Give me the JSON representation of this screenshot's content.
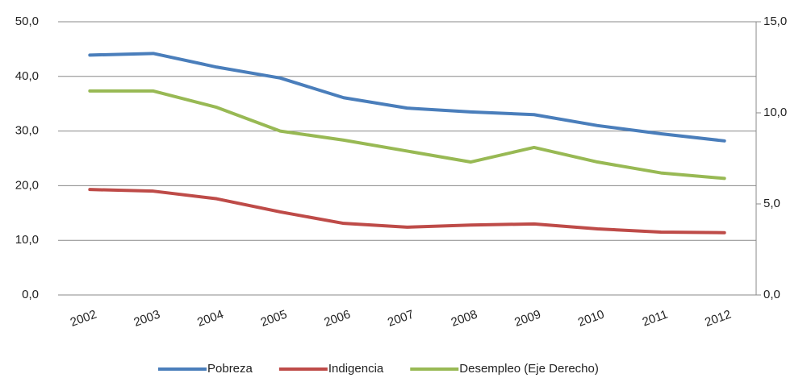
{
  "chart_data": {
    "type": "line",
    "categories": [
      "2002",
      "2003",
      "2004",
      "2005",
      "2006",
      "2007",
      "2008",
      "2009",
      "2010",
      "2011",
      "2012"
    ],
    "series": [
      {
        "name": "Pobreza",
        "color": "#4a7ebb",
        "values": [
          43.9,
          44.2,
          41.7,
          39.7,
          36.1,
          34.2,
          33.5,
          33.0,
          31.0,
          29.5,
          28.2
        ]
      },
      {
        "name": "Indigencia",
        "color": "#be4b48",
        "values": [
          19.3,
          19.0,
          17.6,
          15.2,
          13.1,
          12.4,
          12.8,
          13.0,
          12.1,
          11.5,
          11.4
        ]
      },
      {
        "name": "Desempleo (Eje Derecho)",
        "color": "#98b954",
        "axis": "y2",
        "values": [
          11.2,
          11.2,
          10.3,
          9.0,
          8.5,
          7.9,
          7.3,
          8.1,
          7.3,
          6.7,
          6.4
        ]
      }
    ],
    "ylim": [
      0,
      50
    ],
    "yticks": [
      {
        "value": 0,
        "label": "0,0"
      },
      {
        "value": 10,
        "label": "10,0"
      },
      {
        "value": 20,
        "label": "20,0"
      },
      {
        "value": 30,
        "label": "30,0"
      },
      {
        "value": 40,
        "label": "40,0"
      },
      {
        "value": 50,
        "label": "50,0"
      }
    ],
    "y2lim": [
      0,
      15
    ],
    "y2ticks": [
      {
        "value": 0,
        "label": "0,0"
      },
      {
        "value": 5,
        "label": "5,0"
      },
      {
        "value": 10,
        "label": "10,0"
      },
      {
        "value": 15,
        "label": "15,0"
      }
    ],
    "grid": true,
    "legend": "bottom"
  }
}
